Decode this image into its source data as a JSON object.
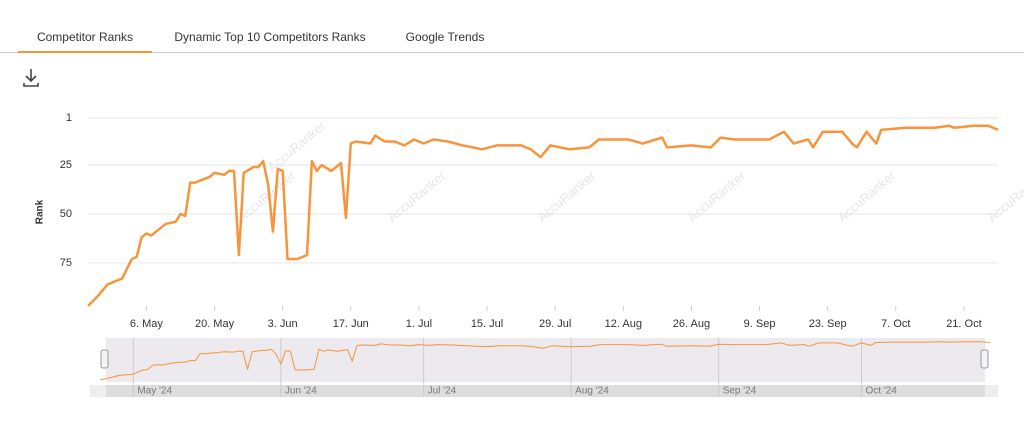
{
  "tabs": [
    "Competitor Ranks",
    "Dynamic Top 10 Competitors Ranks",
    "Google Trends"
  ],
  "chart_data": {
    "type": "line",
    "y_label": "Rank",
    "watermark": "AccuRanker",
    "x": [
      "2024-04-24",
      "2024-04-26",
      "2024-04-28",
      "2024-04-30",
      "2024-05-01",
      "2024-05-03",
      "2024-05-04",
      "2024-05-05",
      "2024-05-06",
      "2024-05-07",
      "2024-05-09",
      "2024-05-10",
      "2024-05-12",
      "2024-05-13",
      "2024-05-14",
      "2024-05-15",
      "2024-05-16",
      "2024-05-17",
      "2024-05-19",
      "2024-05-20",
      "2024-05-22",
      "2024-05-23",
      "2024-05-24",
      "2024-05-25",
      "2024-05-26",
      "2024-05-28",
      "2024-05-29",
      "2024-05-30",
      "2024-05-31",
      "2024-06-01",
      "2024-06-02",
      "2024-06-03",
      "2024-06-04",
      "2024-06-06",
      "2024-06-08",
      "2024-06-09",
      "2024-06-10",
      "2024-06-11",
      "2024-06-13",
      "2024-06-14",
      "2024-06-15",
      "2024-06-16",
      "2024-06-17",
      "2024-06-18",
      "2024-06-21",
      "2024-06-22",
      "2024-06-24",
      "2024-06-26",
      "2024-06-28",
      "2024-06-30",
      "2024-07-02",
      "2024-07-04",
      "2024-07-07",
      "2024-07-10",
      "2024-07-14",
      "2024-07-17",
      "2024-07-22",
      "2024-07-24",
      "2024-07-26",
      "2024-07-28",
      "2024-08-01",
      "2024-08-05",
      "2024-08-07",
      "2024-08-13",
      "2024-08-16",
      "2024-08-20",
      "2024-08-21",
      "2024-08-26",
      "2024-08-30",
      "2024-09-01",
      "2024-09-04",
      "2024-09-07",
      "2024-09-11",
      "2024-09-14",
      "2024-09-16",
      "2024-09-19",
      "2024-09-20",
      "2024-09-22",
      "2024-09-26",
      "2024-09-28",
      "2024-09-29",
      "2024-10-01",
      "2024-10-03",
      "2024-10-04",
      "2024-10-09",
      "2024-10-15",
      "2024-10-18",
      "2024-10-19",
      "2024-10-23",
      "2024-10-26",
      "2024-10-28"
    ],
    "series": [
      {
        "name": "Rank",
        "color": "#f7943c",
        "values": [
          97,
          92,
          86,
          84,
          83,
          73,
          72,
          62,
          60,
          61,
          57,
          55,
          54,
          50,
          51,
          34,
          34,
          33,
          31,
          29,
          30,
          28,
          28,
          71,
          29,
          26,
          26,
          23,
          35,
          59,
          27,
          28,
          73,
          73,
          71,
          23,
          28,
          25,
          28,
          26,
          24,
          52,
          14,
          13,
          14,
          10,
          13,
          13,
          15,
          12,
          14,
          12,
          13,
          15,
          17,
          15,
          15,
          17,
          21,
          15,
          17,
          16,
          12,
          12,
          14,
          11,
          16,
          15,
          16,
          11,
          12,
          12,
          12,
          8,
          14,
          12,
          16,
          8,
          8,
          14,
          16,
          8,
          14,
          7,
          6,
          6,
          5,
          6,
          5,
          5,
          7
        ]
      }
    ],
    "xlim": [
      "2024-04-24",
      "2024-10-28"
    ],
    "ylim": [
      1,
      97
    ],
    "reversed_y": true,
    "grid": true,
    "xticks": [
      {
        "value": "2024-05-06",
        "label": "6. May"
      },
      {
        "value": "2024-05-20",
        "label": "20. May"
      },
      {
        "value": "2024-06-03",
        "label": "3. Jun"
      },
      {
        "value": "2024-06-17",
        "label": "17. Jun"
      },
      {
        "value": "2024-07-01",
        "label": "1. Jul"
      },
      {
        "value": "2024-07-15",
        "label": "15. Jul"
      },
      {
        "value": "2024-07-29",
        "label": "29. Jul"
      },
      {
        "value": "2024-08-12",
        "label": "12. Aug"
      },
      {
        "value": "2024-08-26",
        "label": "26. Aug"
      },
      {
        "value": "2024-09-09",
        "label": "9. Sep"
      },
      {
        "value": "2024-09-23",
        "label": "23. Sep"
      },
      {
        "value": "2024-10-07",
        "label": "7. Oct"
      },
      {
        "value": "2024-10-21",
        "label": "21. Oct"
      }
    ],
    "yticks": [
      1,
      25,
      50,
      75
    ],
    "navigator": {
      "xticks": [
        {
          "value": "2024-05-01",
          "label": "May '24"
        },
        {
          "value": "2024-06-01",
          "label": "Jun '24"
        },
        {
          "value": "2024-07-01",
          "label": "Jul '24"
        },
        {
          "value": "2024-08-01",
          "label": "Aug '24"
        },
        {
          "value": "2024-09-01",
          "label": "Sep '24"
        },
        {
          "value": "2024-10-01",
          "label": "Oct '24"
        }
      ]
    }
  }
}
